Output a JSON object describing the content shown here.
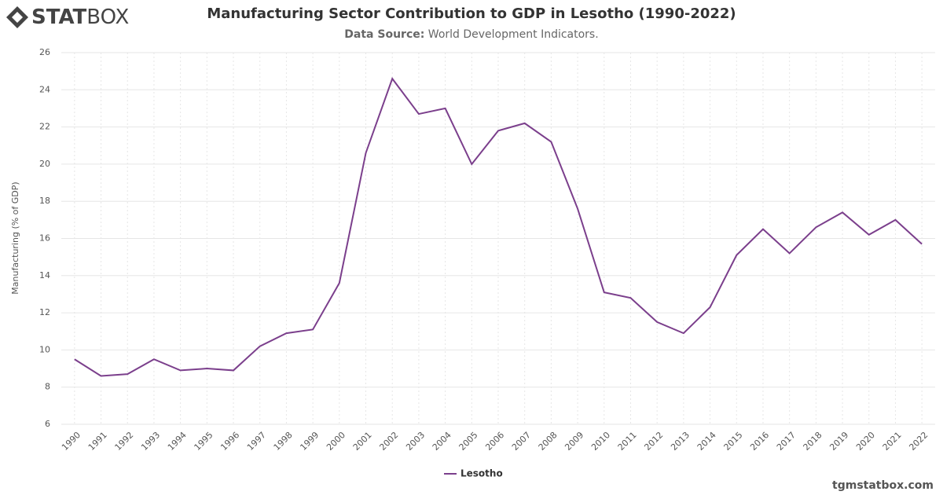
{
  "logo_bold": "STAT",
  "logo_light": "BOX",
  "watermark": "tgmstatbox.com",
  "chart_data": {
    "type": "line",
    "title": "Manufacturing Sector Contribution to GDP in Lesotho (1990-2022)",
    "subtitle_label": "Data Source:",
    "subtitle_text": "World Development Indicators.",
    "y_label": "Manufacturing (% of GDP)",
    "categories": [
      "1990",
      "1991",
      "1992",
      "1993",
      "1994",
      "1995",
      "1996",
      "1997",
      "1998",
      "1999",
      "2000",
      "2001",
      "2002",
      "2003",
      "2004",
      "2005",
      "2006",
      "2007",
      "2008",
      "2009",
      "2010",
      "2011",
      "2012",
      "2013",
      "2014",
      "2015",
      "2016",
      "2017",
      "2018",
      "2019",
      "2020",
      "2021",
      "2022"
    ],
    "series": [
      {
        "name": "Lesotho",
        "color": "#7b3f8c",
        "values": [
          9.5,
          8.6,
          8.7,
          9.5,
          8.9,
          9.0,
          8.9,
          10.2,
          10.9,
          11.1,
          13.6,
          20.6,
          24.6,
          22.7,
          23.0,
          20.0,
          21.8,
          22.2,
          21.2,
          17.6,
          13.1,
          12.8,
          11.5,
          10.9,
          12.3,
          15.1,
          16.5,
          15.2,
          16.6,
          17.4,
          16.2,
          17.0,
          15.7
        ]
      }
    ],
    "ylim": [
      6,
      26
    ],
    "yticks": [
      6,
      8,
      10,
      12,
      14,
      16,
      18,
      20,
      22,
      24,
      26
    ],
    "grid": true,
    "legend": "bottom"
  }
}
